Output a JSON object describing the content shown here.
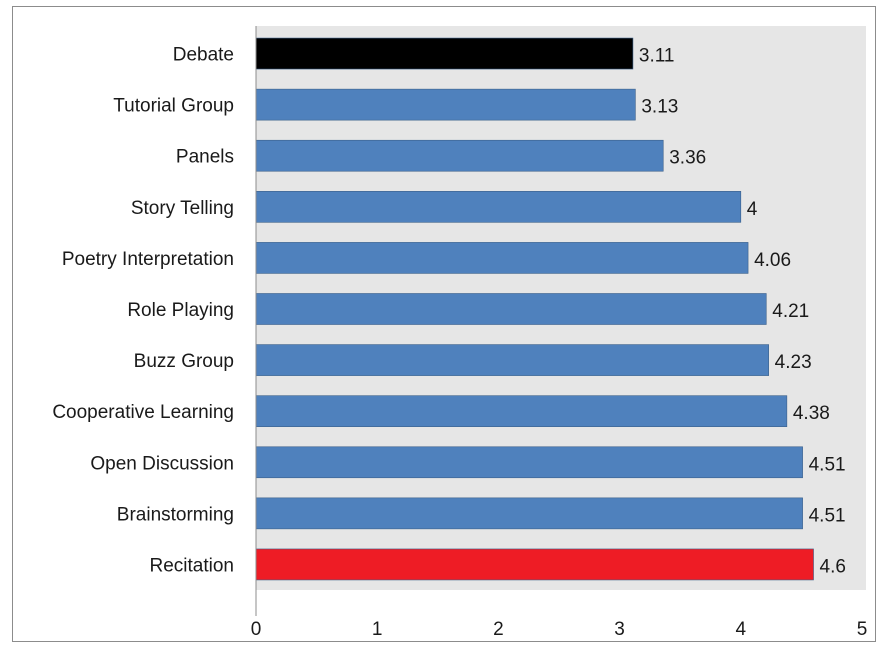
{
  "chart_data": {
    "type": "bar",
    "orientation": "horizontal",
    "categories": [
      "Debate",
      "Tutorial Group",
      "Panels",
      "Story Telling",
      "Poetry Interpretation",
      "Role Playing",
      "Buzz Group",
      "Cooperative Learning",
      "Open Discussion",
      "Brainstorming",
      "Recitation"
    ],
    "values": [
      3.11,
      3.13,
      3.36,
      4,
      4.06,
      4.21,
      4.23,
      4.38,
      4.51,
      4.51,
      4.6
    ],
    "value_labels": [
      "3.11",
      "3.13",
      "3.36",
      "4",
      "4.06",
      "4.21",
      "4.23",
      "4.38",
      "4.51",
      "4.51",
      "4.6"
    ],
    "bar_colors": [
      "#000000",
      "#4f81bd",
      "#4f81bd",
      "#4f81bd",
      "#4f81bd",
      "#4f81bd",
      "#4f81bd",
      "#4f81bd",
      "#4f81bd",
      "#4f81bd",
      "#ee1c25"
    ],
    "xlim": [
      0,
      5
    ],
    "x_ticks": [
      "0",
      "1",
      "2",
      "3",
      "4",
      "5"
    ],
    "plot_background": "#e6e6e6",
    "grid": false,
    "legend": "none",
    "title": "",
    "xlabel": "",
    "ylabel": ""
  }
}
